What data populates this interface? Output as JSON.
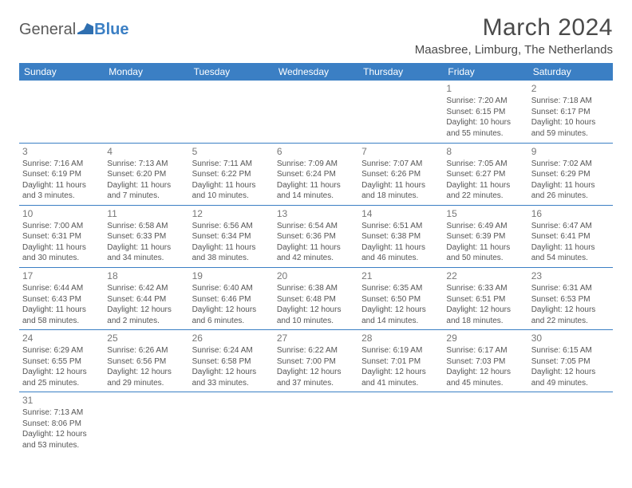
{
  "logo": {
    "text1": "General",
    "text2": "Blue"
  },
  "title": "March 2024",
  "location": "Maasbree, Limburg, The Netherlands",
  "colors": {
    "header_bg": "#3b7fc4",
    "header_fg": "#ffffff",
    "border": "#3b7fc4",
    "text": "#555555"
  },
  "weekdays": [
    "Sunday",
    "Monday",
    "Tuesday",
    "Wednesday",
    "Thursday",
    "Friday",
    "Saturday"
  ],
  "weeks": [
    [
      null,
      null,
      null,
      null,
      null,
      {
        "d": "1",
        "sr": "Sunrise: 7:20 AM",
        "ss": "Sunset: 6:15 PM",
        "dl": "Daylight: 10 hours and 55 minutes."
      },
      {
        "d": "2",
        "sr": "Sunrise: 7:18 AM",
        "ss": "Sunset: 6:17 PM",
        "dl": "Daylight: 10 hours and 59 minutes."
      }
    ],
    [
      {
        "d": "3",
        "sr": "Sunrise: 7:16 AM",
        "ss": "Sunset: 6:19 PM",
        "dl": "Daylight: 11 hours and 3 minutes."
      },
      {
        "d": "4",
        "sr": "Sunrise: 7:13 AM",
        "ss": "Sunset: 6:20 PM",
        "dl": "Daylight: 11 hours and 7 minutes."
      },
      {
        "d": "5",
        "sr": "Sunrise: 7:11 AM",
        "ss": "Sunset: 6:22 PM",
        "dl": "Daylight: 11 hours and 10 minutes."
      },
      {
        "d": "6",
        "sr": "Sunrise: 7:09 AM",
        "ss": "Sunset: 6:24 PM",
        "dl": "Daylight: 11 hours and 14 minutes."
      },
      {
        "d": "7",
        "sr": "Sunrise: 7:07 AM",
        "ss": "Sunset: 6:26 PM",
        "dl": "Daylight: 11 hours and 18 minutes."
      },
      {
        "d": "8",
        "sr": "Sunrise: 7:05 AM",
        "ss": "Sunset: 6:27 PM",
        "dl": "Daylight: 11 hours and 22 minutes."
      },
      {
        "d": "9",
        "sr": "Sunrise: 7:02 AM",
        "ss": "Sunset: 6:29 PM",
        "dl": "Daylight: 11 hours and 26 minutes."
      }
    ],
    [
      {
        "d": "10",
        "sr": "Sunrise: 7:00 AM",
        "ss": "Sunset: 6:31 PM",
        "dl": "Daylight: 11 hours and 30 minutes."
      },
      {
        "d": "11",
        "sr": "Sunrise: 6:58 AM",
        "ss": "Sunset: 6:33 PM",
        "dl": "Daylight: 11 hours and 34 minutes."
      },
      {
        "d": "12",
        "sr": "Sunrise: 6:56 AM",
        "ss": "Sunset: 6:34 PM",
        "dl": "Daylight: 11 hours and 38 minutes."
      },
      {
        "d": "13",
        "sr": "Sunrise: 6:54 AM",
        "ss": "Sunset: 6:36 PM",
        "dl": "Daylight: 11 hours and 42 minutes."
      },
      {
        "d": "14",
        "sr": "Sunrise: 6:51 AM",
        "ss": "Sunset: 6:38 PM",
        "dl": "Daylight: 11 hours and 46 minutes."
      },
      {
        "d": "15",
        "sr": "Sunrise: 6:49 AM",
        "ss": "Sunset: 6:39 PM",
        "dl": "Daylight: 11 hours and 50 minutes."
      },
      {
        "d": "16",
        "sr": "Sunrise: 6:47 AM",
        "ss": "Sunset: 6:41 PM",
        "dl": "Daylight: 11 hours and 54 minutes."
      }
    ],
    [
      {
        "d": "17",
        "sr": "Sunrise: 6:44 AM",
        "ss": "Sunset: 6:43 PM",
        "dl": "Daylight: 11 hours and 58 minutes."
      },
      {
        "d": "18",
        "sr": "Sunrise: 6:42 AM",
        "ss": "Sunset: 6:44 PM",
        "dl": "Daylight: 12 hours and 2 minutes."
      },
      {
        "d": "19",
        "sr": "Sunrise: 6:40 AM",
        "ss": "Sunset: 6:46 PM",
        "dl": "Daylight: 12 hours and 6 minutes."
      },
      {
        "d": "20",
        "sr": "Sunrise: 6:38 AM",
        "ss": "Sunset: 6:48 PM",
        "dl": "Daylight: 12 hours and 10 minutes."
      },
      {
        "d": "21",
        "sr": "Sunrise: 6:35 AM",
        "ss": "Sunset: 6:50 PM",
        "dl": "Daylight: 12 hours and 14 minutes."
      },
      {
        "d": "22",
        "sr": "Sunrise: 6:33 AM",
        "ss": "Sunset: 6:51 PM",
        "dl": "Daylight: 12 hours and 18 minutes."
      },
      {
        "d": "23",
        "sr": "Sunrise: 6:31 AM",
        "ss": "Sunset: 6:53 PM",
        "dl": "Daylight: 12 hours and 22 minutes."
      }
    ],
    [
      {
        "d": "24",
        "sr": "Sunrise: 6:29 AM",
        "ss": "Sunset: 6:55 PM",
        "dl": "Daylight: 12 hours and 25 minutes."
      },
      {
        "d": "25",
        "sr": "Sunrise: 6:26 AM",
        "ss": "Sunset: 6:56 PM",
        "dl": "Daylight: 12 hours and 29 minutes."
      },
      {
        "d": "26",
        "sr": "Sunrise: 6:24 AM",
        "ss": "Sunset: 6:58 PM",
        "dl": "Daylight: 12 hours and 33 minutes."
      },
      {
        "d": "27",
        "sr": "Sunrise: 6:22 AM",
        "ss": "Sunset: 7:00 PM",
        "dl": "Daylight: 12 hours and 37 minutes."
      },
      {
        "d": "28",
        "sr": "Sunrise: 6:19 AM",
        "ss": "Sunset: 7:01 PM",
        "dl": "Daylight: 12 hours and 41 minutes."
      },
      {
        "d": "29",
        "sr": "Sunrise: 6:17 AM",
        "ss": "Sunset: 7:03 PM",
        "dl": "Daylight: 12 hours and 45 minutes."
      },
      {
        "d": "30",
        "sr": "Sunrise: 6:15 AM",
        "ss": "Sunset: 7:05 PM",
        "dl": "Daylight: 12 hours and 49 minutes."
      }
    ],
    [
      {
        "d": "31",
        "sr": "Sunrise: 7:13 AM",
        "ss": "Sunset: 8:06 PM",
        "dl": "Daylight: 12 hours and 53 minutes."
      },
      null,
      null,
      null,
      null,
      null,
      null
    ]
  ]
}
